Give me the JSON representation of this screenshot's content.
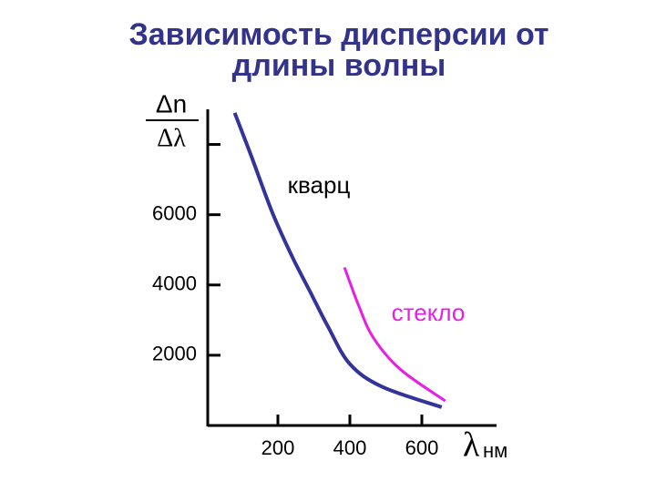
{
  "chart_data": {
    "type": "line",
    "title": [
      "Зависимость дисперсии от",
      "длины волны"
    ],
    "ylabel_top": "Δn",
    "ylabel_bottom": "Δλ",
    "xlabel": "λ",
    "xunit": "нм",
    "xlim": [
      0,
      800
    ],
    "xticks": [
      200,
      400,
      600
    ],
    "ylim": [
      0,
      9000
    ],
    "yticks": [
      2000,
      4000,
      6000
    ],
    "yticks_unlabeled": [
      8000
    ],
    "series": [
      {
        "name": "кварц",
        "color": "#333399",
        "x": [
          80,
          125,
          185,
          240,
          290,
          340,
          400,
          490,
          655
        ],
        "values": [
          8900,
          7700,
          6050,
          4800,
          3800,
          2800,
          1750,
          1100,
          520
        ]
      },
      {
        "name": "стекло",
        "color": "#e61ee6",
        "x": [
          385,
          425,
          465,
          540,
          665
        ],
        "values": [
          4500,
          3400,
          2500,
          1600,
          700
        ]
      }
    ]
  }
}
